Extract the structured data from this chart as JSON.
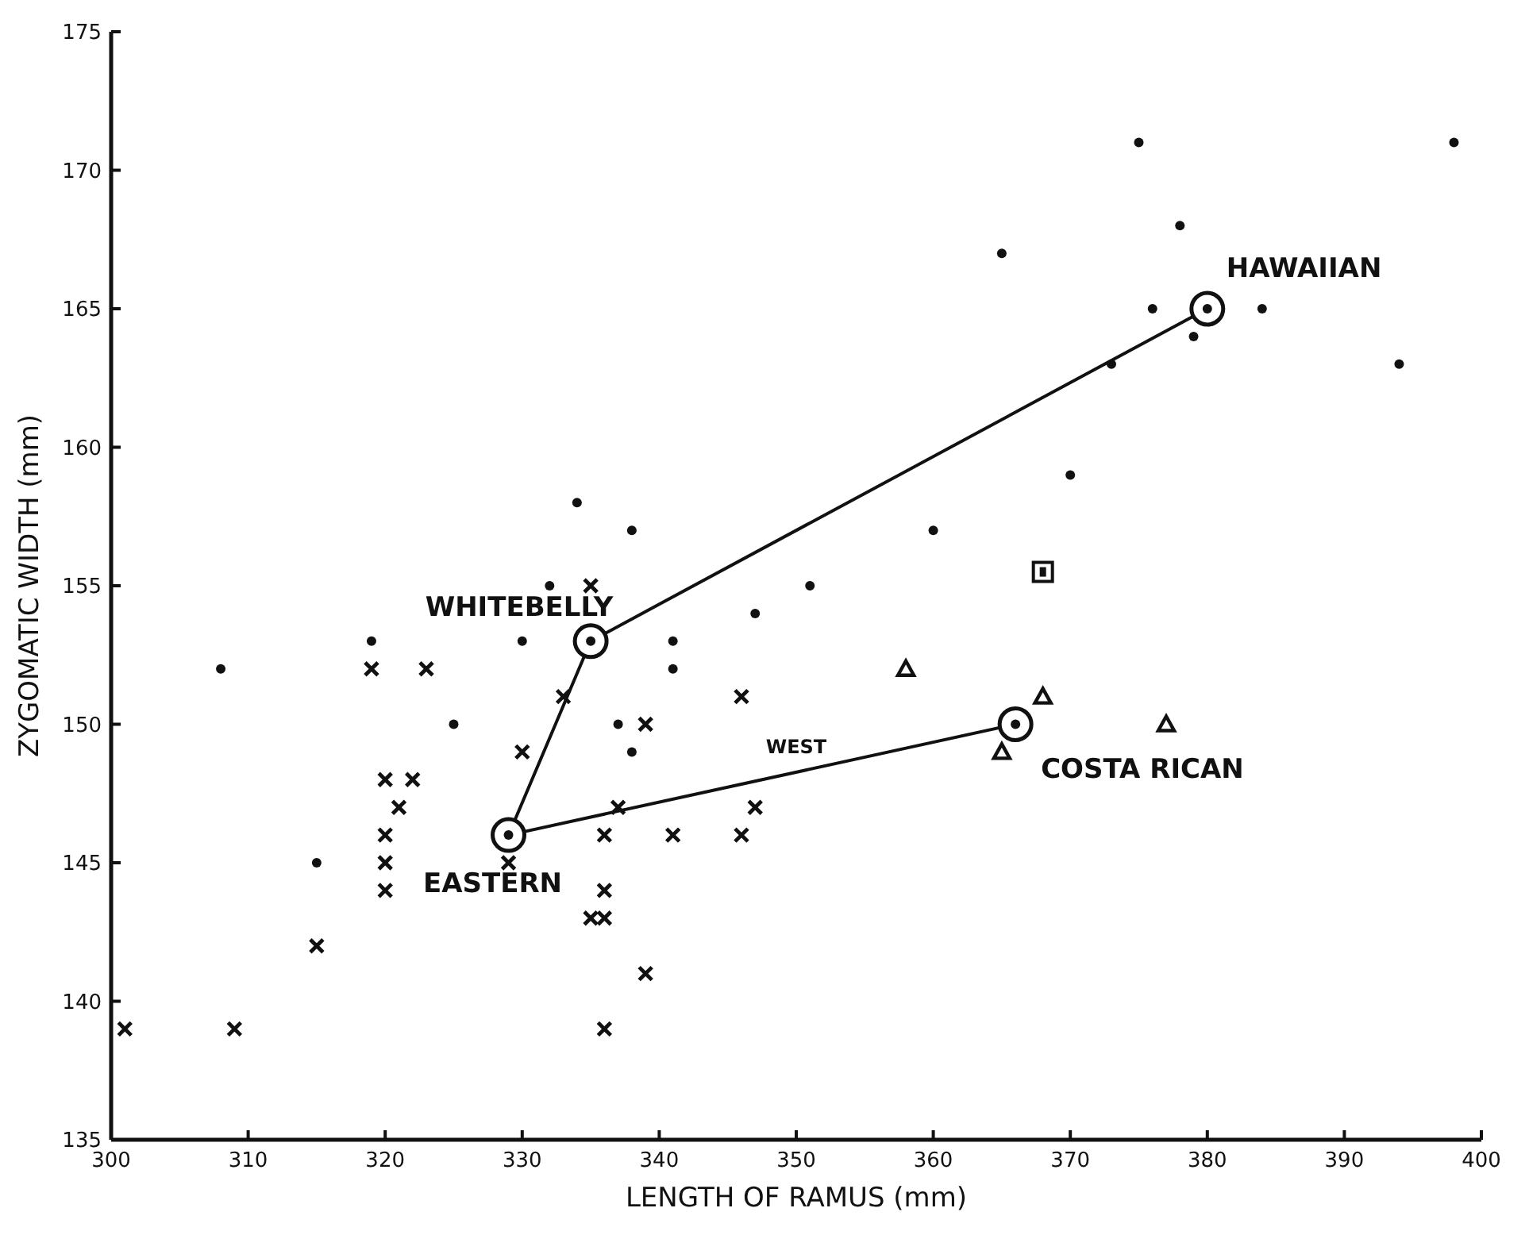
{
  "chart_data": {
    "type": "scatter",
    "xlabel": "LENGTH OF RAMUS (mm)",
    "ylabel": "ZYGOMATIC WIDTH (mm)",
    "xlim": [
      300,
      400
    ],
    "ylim": [
      135,
      175
    ],
    "xticks": [
      300,
      310,
      320,
      330,
      340,
      350,
      360,
      370,
      380,
      390,
      400
    ],
    "yticks": [
      135,
      140,
      145,
      150,
      155,
      160,
      165,
      170,
      175
    ],
    "grid": false,
    "series": [
      {
        "marker": "circle",
        "color": "#111111",
        "x": [
          308,
          315,
          325,
          330,
          332,
          319,
          334,
          338,
          341,
          341,
          347,
          351,
          337,
          338,
          360
        ],
        "values": [
          152,
          145,
          150,
          153,
          155,
          153,
          158,
          157,
          153,
          152,
          154,
          155,
          150,
          149,
          157
        ]
      },
      {
        "marker": "cross",
        "color": "#111111",
        "x": [
          301,
          309,
          315,
          319,
          323,
          320,
          322,
          321,
          320,
          320,
          320,
          329,
          330,
          335,
          333,
          339,
          346,
          337,
          347,
          336,
          341,
          346,
          336,
          335,
          336,
          339,
          336
        ],
        "values": [
          139,
          139,
          142,
          152,
          152,
          148,
          148,
          147,
          146,
          145,
          144,
          145,
          149,
          155,
          151,
          150,
          151,
          147,
          147,
          146,
          146,
          146,
          144,
          143,
          143,
          141,
          139
        ]
      },
      {
        "marker": "circle",
        "color": "#111111",
        "x": [
          375,
          398,
          378,
          365,
          376,
          384,
          379,
          394,
          373,
          370
        ],
        "values": [
          171,
          171,
          168,
          167,
          165,
          165,
          164,
          163,
          163,
          159
        ]
      },
      {
        "marker": "triangle",
        "color": "#111111",
        "x": [
          358,
          368,
          377,
          365
        ],
        "values": [
          152,
          151,
          150,
          149
        ]
      },
      {
        "marker": "square",
        "color": "#111111",
        "x": [
          368
        ],
        "values": [
          155.5
        ]
      },
      {
        "type": "line",
        "marker": "circle",
        "color": "#111111",
        "x": [
          366,
          329,
          335,
          380
        ],
        "values": [
          150,
          146,
          153,
          165
        ]
      }
    ],
    "annotations": [
      {
        "text": "WHITEBELLY",
        "x": 335,
        "y": 153
      },
      {
        "text": "EASTERN",
        "x": 329,
        "y": 146
      },
      {
        "text": "HAWAIIAN",
        "x": 380,
        "y": 165
      },
      {
        "text": "COSTA RICAN",
        "x": 366,
        "y": 150
      },
      {
        "text": "WEST",
        "x": 350,
        "y": 148.5
      }
    ]
  }
}
